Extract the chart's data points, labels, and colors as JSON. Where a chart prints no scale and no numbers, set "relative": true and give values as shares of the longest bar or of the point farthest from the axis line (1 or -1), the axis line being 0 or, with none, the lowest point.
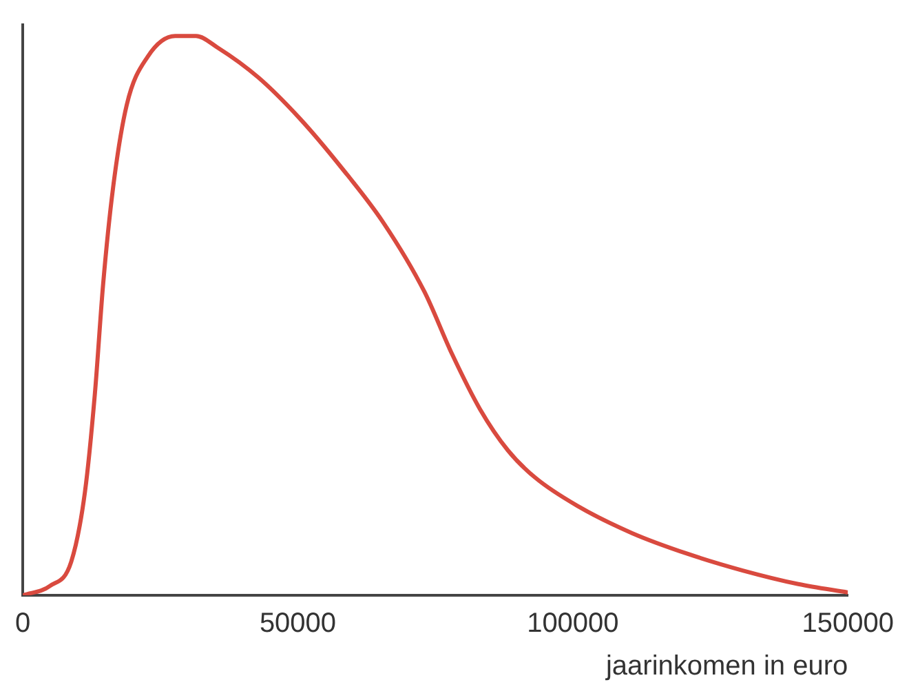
{
  "chart_data": {
    "type": "line",
    "relative": true,
    "xlabel": "jaarinkomen in euro",
    "xlim": [
      0,
      150000
    ],
    "xticks": [
      0,
      50000,
      100000,
      150000
    ],
    "grid": false,
    "legend": false,
    "marker": "none",
    "line_style": "solid",
    "series": [
      {
        "color": "#d94a3f",
        "x": [
          0,
          5000,
          8800,
          11300,
          13100,
          14600,
          16400,
          18900,
          22700,
          27700,
          31500,
          35300,
          42800,
          50400,
          57900,
          65500,
          73000,
          78000,
          83100,
          88200,
          93200,
          100800,
          110800,
          120900,
          131000,
          141000,
          150000
        ],
        "values": [
          0,
          0.017,
          0.06,
          0.185,
          0.36,
          0.556,
          0.728,
          0.877,
          0.963,
          1,
          1,
          0.98,
          0.926,
          0.852,
          0.765,
          0.667,
          0.543,
          0.432,
          0.333,
          0.259,
          0.21,
          0.16,
          0.111,
          0.074,
          0.044,
          0.02,
          0.005
        ]
      }
    ]
  }
}
